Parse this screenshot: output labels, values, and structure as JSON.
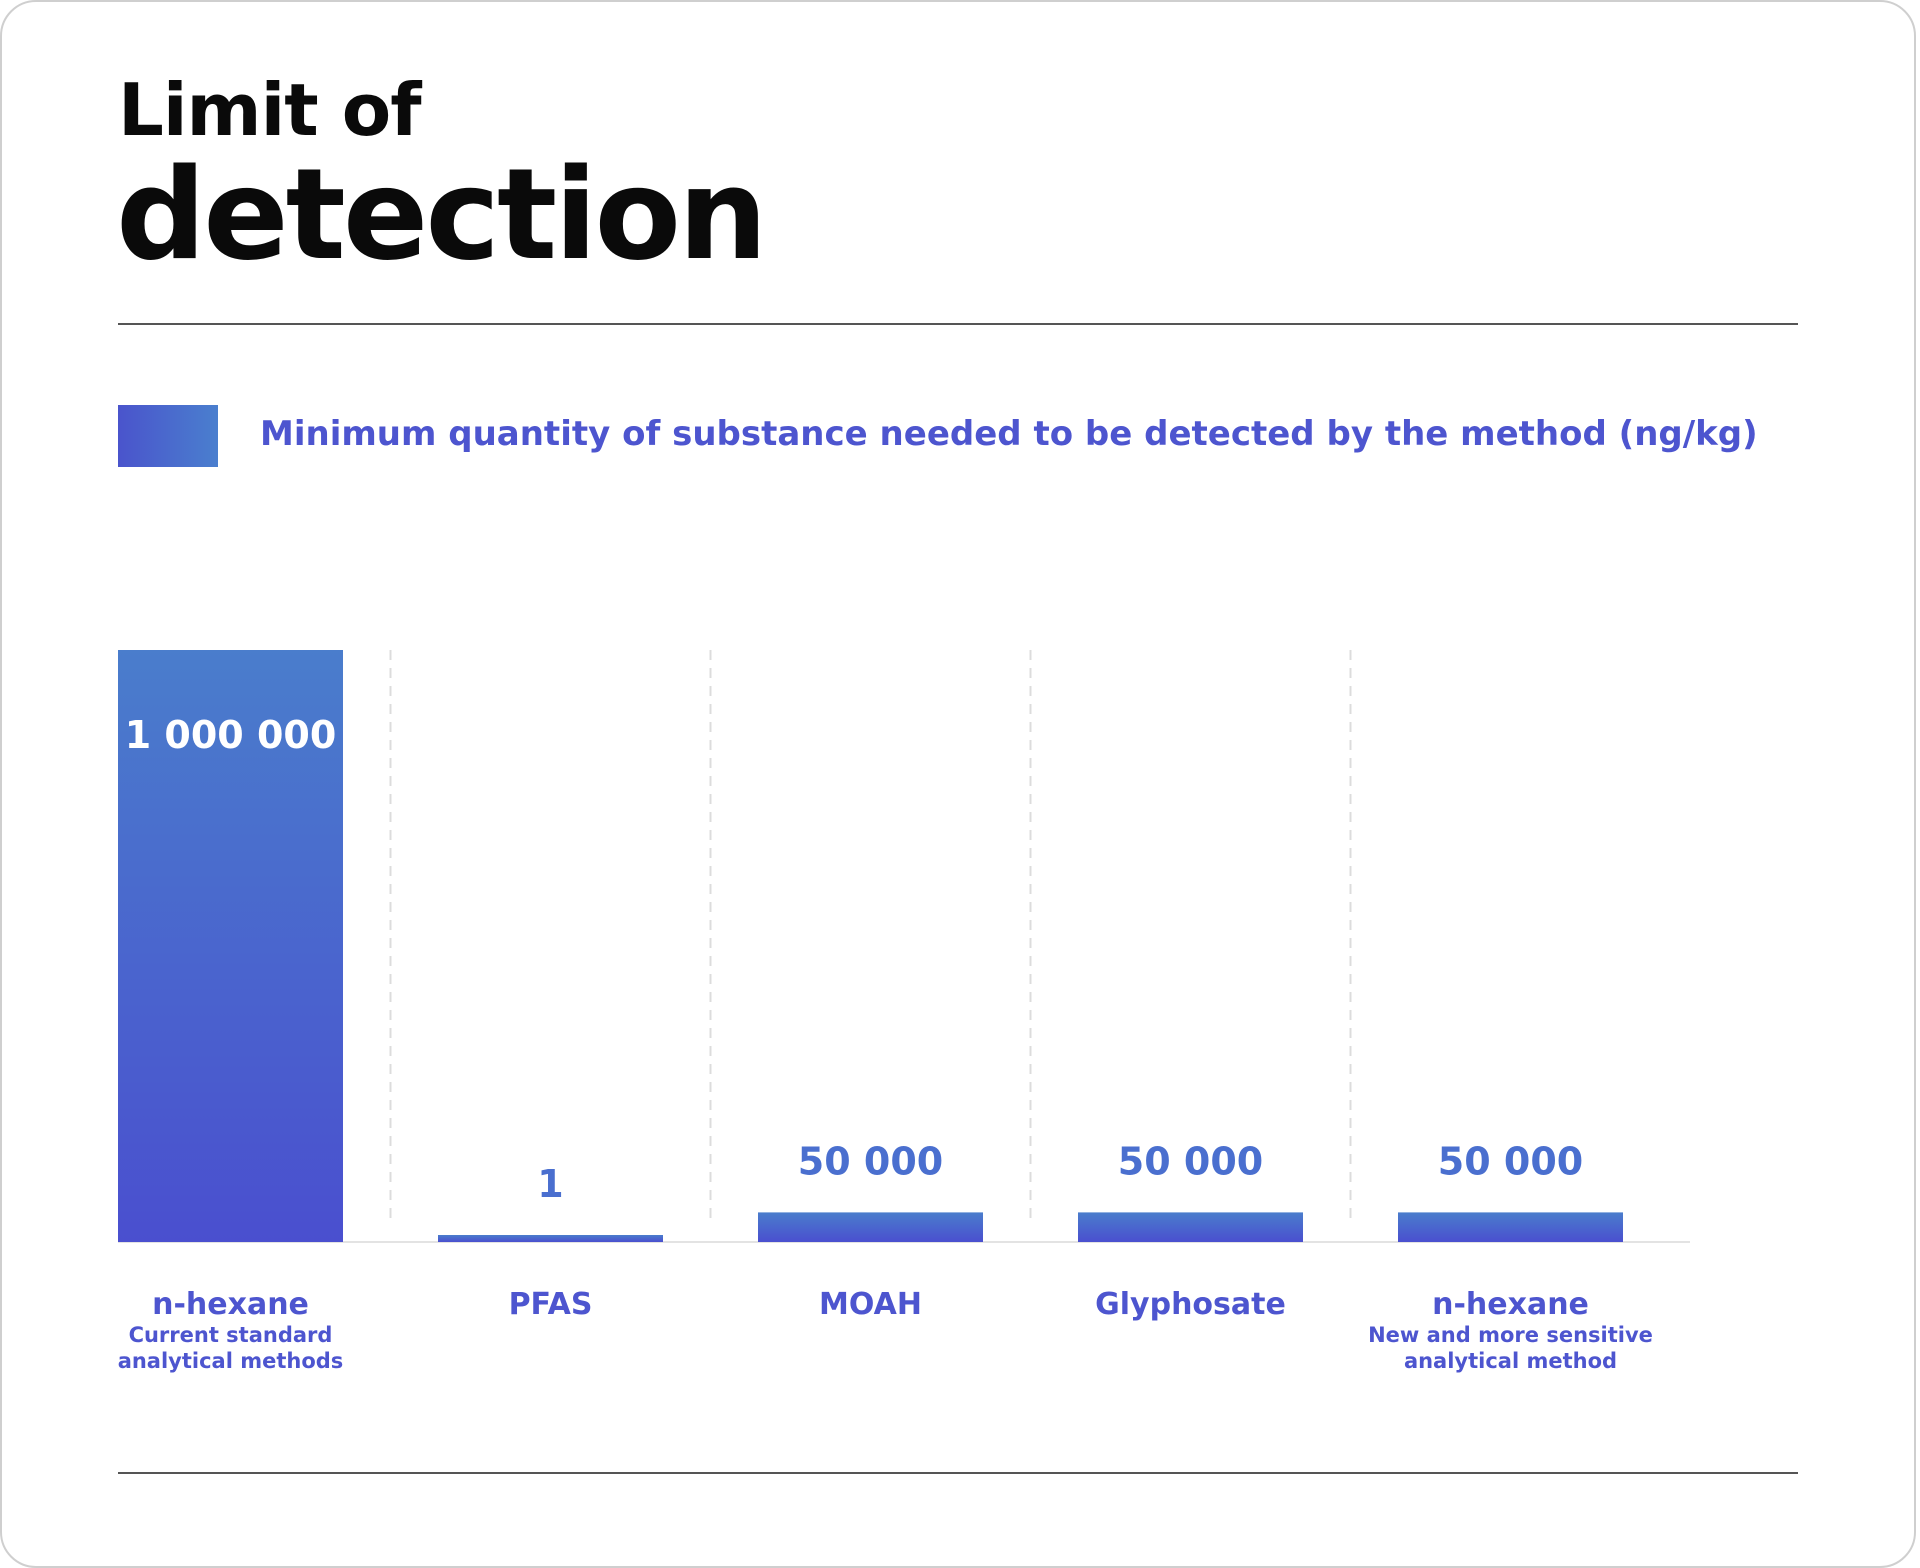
{
  "title_line1": "Limit of",
  "title_line2": "detection",
  "legend": {
    "label": "Minimum quantity of substance needed to be detected by the method (ng/kg)"
  },
  "colors": {
    "bar_top": "#4a7dcc",
    "bar_bottom": "#4a4fcf",
    "value_on_bar": "#ffffff",
    "value_above_bar": "#4a6fcf",
    "category_text": "#4d55cf",
    "title": "#0a0a0a"
  },
  "chart_data": {
    "type": "bar",
    "categories": [
      "n-hexane",
      "PFAS",
      "MOAH",
      "Glyphosate",
      "n-hexane"
    ],
    "category_sublabels": [
      [
        "Current standard",
        "analytical methods"
      ],
      [],
      [],
      [],
      [
        "New and more sensitive",
        "analytical method"
      ]
    ],
    "values": [
      1000000,
      1,
      50000,
      50000,
      50000
    ],
    "value_labels": [
      "1 000 000",
      "1",
      "50 000",
      "50 000",
      "50 000"
    ],
    "ylim": [
      0,
      1000000
    ],
    "grid": false,
    "separators": "dashed vertical lines between bars",
    "legend_placement": "top-left"
  }
}
